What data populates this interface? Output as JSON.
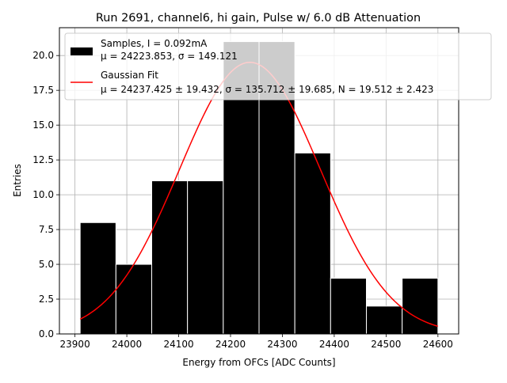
{
  "chart_data": {
    "type": "bar",
    "title": "Run 2691, channel6, hi gain, Pulse w/ 6.0 dB Attenuation",
    "xlabel": "Energy from OFCs [ADC Counts]",
    "ylabel": "Entries",
    "xlim": [
      23870,
      24640
    ],
    "ylim": [
      0,
      22
    ],
    "grid": true,
    "legend_position": "upper-right",
    "x_ticks": [
      23900,
      24000,
      24100,
      24200,
      24300,
      24400,
      24500,
      24600
    ],
    "y_ticks": [
      0.0,
      2.5,
      5.0,
      7.5,
      10.0,
      12.5,
      15.0,
      17.5,
      20.0
    ],
    "colors": {
      "bars": "#000000",
      "bar_edges": "#ffffff",
      "fit_line": "#ff0000",
      "grid": "#b0b0b0"
    },
    "series": [
      {
        "name": "Samples, I = 0.092mA",
        "name_line2": "μ = 24223.853, σ = 149.121",
        "kind": "histogram",
        "bin_edges": [
          23910,
          23979,
          24048,
          24117,
          24186,
          24255,
          24324,
          24393,
          24462,
          24531,
          24600
        ],
        "values": [
          8,
          5,
          11,
          11,
          21,
          21,
          13,
          4,
          2,
          4
        ]
      },
      {
        "name": "Gaussian Fit",
        "name_line2": "μ = 24237.425 ± 19.432, σ = 135.712 ± 19.685, N = 19.512 ± 2.423",
        "kind": "line",
        "x_range": [
          23910,
          24600
        ],
        "mu": 24237.425,
        "sigma": 135.712,
        "amplitude": 19.512
      }
    ]
  }
}
